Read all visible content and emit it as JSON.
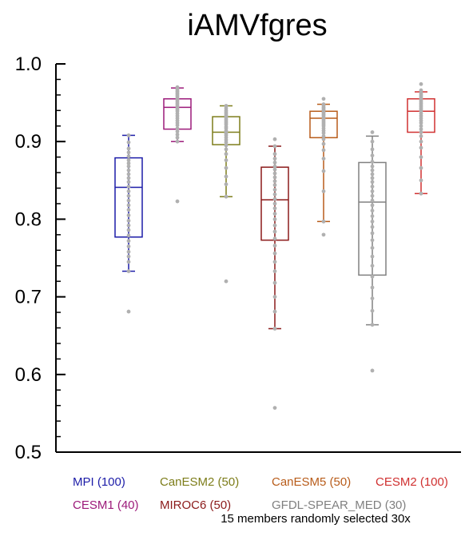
{
  "colors": {
    "axis": "#000000",
    "points": "#b0b0b0"
  },
  "chart_data": {
    "type": "box",
    "title": "iAMVfgres",
    "xlabel": "",
    "ylabel": "",
    "ylim": [
      0.5,
      1.0
    ],
    "yticks": [
      "0.5",
      "0.6",
      "0.7",
      "0.8",
      "0.9",
      "1.0"
    ],
    "grid": false,
    "legend_position": "bottom",
    "note": "15 members randomly selected 30x",
    "series": [
      {
        "name": "MPI (100)",
        "color": "#1c1ca8",
        "whisker_low": 0.733,
        "q1": 0.777,
        "median": 0.841,
        "q3": 0.879,
        "whisker_high": 0.908,
        "points": [
          0.681,
          0.733,
          0.745,
          0.752,
          0.758,
          0.765,
          0.772,
          0.779,
          0.786,
          0.792,
          0.798,
          0.805,
          0.812,
          0.818,
          0.824,
          0.83,
          0.836,
          0.842,
          0.848,
          0.853,
          0.858,
          0.863,
          0.868,
          0.872,
          0.876,
          0.881,
          0.886,
          0.891,
          0.899,
          0.908
        ]
      },
      {
        "name": "CESM1 (40)",
        "color": "#9c1a7a",
        "whisker_low": 0.9,
        "q1": 0.916,
        "median": 0.944,
        "q3": 0.955,
        "whisker_high": 0.969,
        "points": [
          0.823,
          0.9,
          0.905,
          0.909,
          0.913,
          0.917,
          0.921,
          0.924,
          0.927,
          0.93,
          0.933,
          0.936,
          0.939,
          0.941,
          0.943,
          0.945,
          0.947,
          0.949,
          0.951,
          0.953,
          0.955,
          0.957,
          0.959,
          0.961,
          0.962,
          0.964,
          0.965,
          0.967,
          0.968,
          0.97
        ]
      },
      {
        "name": "CanESM2 (50)",
        "color": "#7d7d1a",
        "whisker_low": 0.829,
        "q1": 0.896,
        "median": 0.912,
        "q3": 0.932,
        "whisker_high": 0.946,
        "points": [
          0.72,
          0.829,
          0.845,
          0.855,
          0.866,
          0.876,
          0.884,
          0.89,
          0.895,
          0.899,
          0.902,
          0.905,
          0.908,
          0.91,
          0.912,
          0.914,
          0.917,
          0.919,
          0.922,
          0.924,
          0.926,
          0.928,
          0.93,
          0.932,
          0.934,
          0.936,
          0.938,
          0.94,
          0.943,
          0.946
        ]
      },
      {
        "name": "MIROC6 (50)",
        "color": "#8b1a1a",
        "whisker_low": 0.659,
        "q1": 0.773,
        "median": 0.825,
        "q3": 0.867,
        "whisker_high": 0.894,
        "points": [
          0.557,
          0.659,
          0.681,
          0.7,
          0.718,
          0.733,
          0.745,
          0.756,
          0.766,
          0.775,
          0.784,
          0.792,
          0.8,
          0.807,
          0.814,
          0.82,
          0.826,
          0.832,
          0.838,
          0.844,
          0.849,
          0.854,
          0.859,
          0.864,
          0.868,
          0.873,
          0.878,
          0.884,
          0.894,
          0.903
        ]
      },
      {
        "name": "CanESM5 (50)",
        "color": "#b85c1a",
        "whisker_low": 0.797,
        "q1": 0.905,
        "median": 0.93,
        "q3": 0.939,
        "whisker_high": 0.948,
        "points": [
          0.78,
          0.797,
          0.836,
          0.862,
          0.878,
          0.889,
          0.897,
          0.903,
          0.907,
          0.911,
          0.914,
          0.917,
          0.92,
          0.922,
          0.924,
          0.926,
          0.928,
          0.93,
          0.932,
          0.934,
          0.935,
          0.937,
          0.938,
          0.94,
          0.941,
          0.943,
          0.944,
          0.946,
          0.948,
          0.955
        ]
      },
      {
        "name": "GFDL-SPEAR_MED (30)",
        "color": "#808080",
        "whisker_low": 0.664,
        "q1": 0.728,
        "median": 0.822,
        "q3": 0.873,
        "whisker_high": 0.907,
        "points": [
          0.605,
          0.664,
          0.682,
          0.698,
          0.712,
          0.726,
          0.74,
          0.752,
          0.763,
          0.773,
          0.782,
          0.79,
          0.797,
          0.804,
          0.811,
          0.818,
          0.824,
          0.83,
          0.836,
          0.842,
          0.848,
          0.853,
          0.858,
          0.863,
          0.868,
          0.874,
          0.882,
          0.89,
          0.9,
          0.912
        ]
      },
      {
        "name": "CESM2 (100)",
        "color": "#d03030",
        "whisker_low": 0.833,
        "q1": 0.912,
        "median": 0.939,
        "q3": 0.955,
        "whisker_high": 0.964,
        "points": [
          0.833,
          0.85,
          0.866,
          0.88,
          0.892,
          0.9,
          0.907,
          0.912,
          0.916,
          0.92,
          0.924,
          0.927,
          0.93,
          0.933,
          0.936,
          0.939,
          0.941,
          0.943,
          0.945,
          0.947,
          0.949,
          0.951,
          0.953,
          0.955,
          0.957,
          0.959,
          0.961,
          0.963,
          0.966,
          0.974
        ]
      }
    ]
  }
}
